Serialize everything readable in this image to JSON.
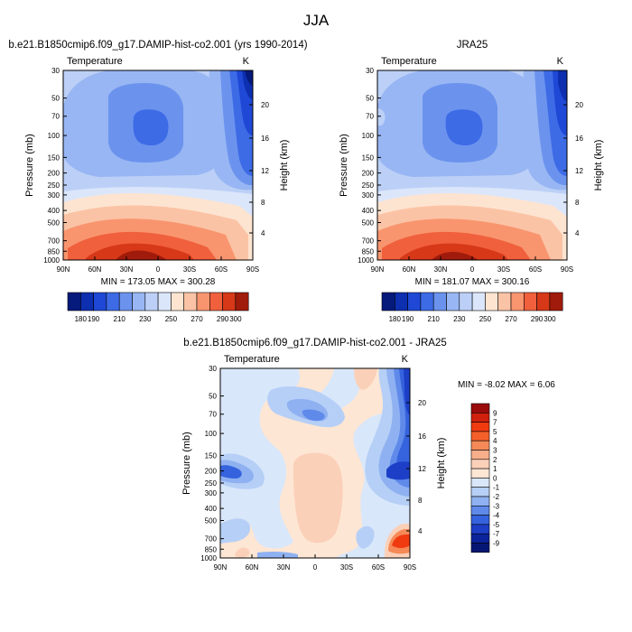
{
  "page_title": "JJA",
  "chart_data": [
    {
      "type": "contour",
      "id": "model",
      "title": "b.e21.B1850cmip6.f09_g17.DAMIP-hist-co2.001 (yrs 1990-2014)",
      "left_label": "Temperature",
      "unit_label": "K",
      "ylabel": "Pressure (mb)",
      "ylabel_right": "Height (km)",
      "x_ticks": [
        "90N",
        "60N",
        "30N",
        "0",
        "30S",
        "60S",
        "90S"
      ],
      "y_ticks": [
        "30",
        "50",
        "70",
        "100",
        "150",
        "200",
        "250",
        "300",
        "400",
        "500",
        "700",
        "850",
        "1000"
      ],
      "y_ticks_right": [
        "20",
        "16",
        "12",
        "8",
        "4"
      ],
      "stats_text": "MIN = 173.05   MAX = 300.28",
      "min": 173.05,
      "max": 300.28,
      "levels": [
        "180",
        "190",
        "200",
        "210",
        "220",
        "230",
        "240",
        "250",
        "260",
        "270",
        "280",
        "290",
        "300"
      ],
      "colorbar_labels": [
        "180",
        "190",
        "210",
        "230",
        "250",
        "270",
        "290",
        "300"
      ]
    },
    {
      "type": "contour",
      "id": "obs",
      "title": "JRA25",
      "left_label": "Temperature",
      "unit_label": "K",
      "ylabel": "Pressure (mb)",
      "ylabel_right": "Height (km)",
      "x_ticks": [
        "90N",
        "60N",
        "30N",
        "0",
        "30S",
        "60S",
        "90S"
      ],
      "y_ticks": [
        "30",
        "50",
        "70",
        "100",
        "150",
        "200",
        "250",
        "300",
        "400",
        "500",
        "700",
        "850",
        "1000"
      ],
      "y_ticks_right": [
        "20",
        "16",
        "12",
        "8",
        "4"
      ],
      "stats_text": "MIN = 181.07   MAX = 300.16",
      "min": 181.07,
      "max": 300.16,
      "levels": [
        "180",
        "190",
        "200",
        "210",
        "220",
        "230",
        "240",
        "250",
        "260",
        "270",
        "280",
        "290",
        "300"
      ],
      "colorbar_labels": [
        "180",
        "190",
        "210",
        "230",
        "250",
        "270",
        "290",
        "300"
      ]
    },
    {
      "type": "contour",
      "id": "diff",
      "title": "b.e21.B1850cmip6.f09_g17.DAMIP-hist-co2.001 - JRA25",
      "left_label": "Temperature",
      "unit_label": "K",
      "ylabel": "Pressure (mb)",
      "ylabel_right": "Height (km)",
      "x_ticks": [
        "90N",
        "60N",
        "30N",
        "0",
        "30S",
        "60S",
        "90S"
      ],
      "y_ticks": [
        "30",
        "50",
        "70",
        "100",
        "150",
        "200",
        "250",
        "300",
        "400",
        "500",
        "700",
        "850",
        "1000"
      ],
      "y_ticks_right": [
        "20",
        "16",
        "12",
        "8",
        "4"
      ],
      "stats_text": "MIN =  -8.02   MAX =    6.06",
      "min": -8.02,
      "max": 6.06,
      "colorbar_labels": [
        "9",
        "7",
        "5",
        "4",
        "3",
        "2",
        "1",
        "0",
        "-1",
        "-2",
        "-3",
        "-4",
        "-5",
        "-7",
        "-9"
      ]
    }
  ],
  "colors": {
    "temp_ramp": [
      "#051a7a",
      "#0d2fb0",
      "#1f48d6",
      "#3d6be6",
      "#6b93ee",
      "#98b6f3",
      "#bcd0f7",
      "#dbe6fb",
      "#fde4d1",
      "#fbc3a5",
      "#f8956f",
      "#f0603c",
      "#d63818",
      "#a01b0b"
    ],
    "diff_ramp": [
      "#9a0b0b",
      "#d0200e",
      "#f03a10",
      "#f45f2a",
      "#f58a58",
      "#f7ae8a",
      "#fbd0b8",
      "#fde6d4",
      "#d9e7fb",
      "#b6cff6",
      "#8fb1f1",
      "#5f8aea",
      "#3563de",
      "#1d3fc8",
      "#0b249c",
      "#061773"
    ]
  }
}
